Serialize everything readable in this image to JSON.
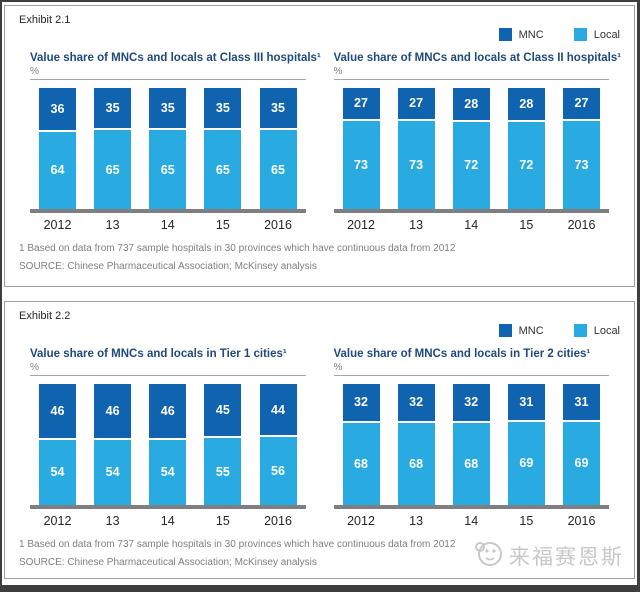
{
  "colors": {
    "mnc": "#1063ae",
    "local": "#29abe2",
    "title": "#1f4a7d",
    "rule": "#a6a6a6",
    "axis": "#7f7f7f",
    "panel-border": "#9d9d9d",
    "frame": "#3e3e3e",
    "watermark": "#c8c8c8"
  },
  "legend": {
    "mnc": "MNC",
    "local": "Local"
  },
  "exhibits": [
    {
      "label": "Exhibit 2.1",
      "footnote": "1 Based on data from 737 sample hospitals in 30 provinces which have continuous data from 2012",
      "source": "SOURCE: Chinese Pharmaceutical Association; McKinsey analysis"
    },
    {
      "label": "Exhibit 2.2",
      "footnote": "1 Based on data from 737 sample hospitals in 30 provinces which have continuous data from 2012",
      "source": "SOURCE: Chinese Pharmaceutical Association; McKinsey analysis"
    }
  ],
  "watermark": {
    "text": "来福赛恩斯"
  },
  "chart_data": [
    {
      "type": "bar",
      "stacked": true,
      "title": "Value share of MNCs and locals at Class III hospitals¹",
      "unit": "%",
      "ylim": [
        0,
        100
      ],
      "grid": false,
      "legend_position": "top-right",
      "categories": [
        "2012",
        "13",
        "14",
        "15",
        "2016"
      ],
      "series": [
        {
          "name": "MNC",
          "values": [
            36,
            35,
            35,
            35,
            35
          ]
        },
        {
          "name": "Local",
          "values": [
            64,
            65,
            65,
            65,
            65
          ]
        }
      ]
    },
    {
      "type": "bar",
      "stacked": true,
      "title": "Value share of MNCs and locals at Class II hospitals¹",
      "unit": "%",
      "ylim": [
        0,
        100
      ],
      "grid": false,
      "legend_position": "top-right",
      "categories": [
        "2012",
        "13",
        "14",
        "15",
        "2016"
      ],
      "series": [
        {
          "name": "MNC",
          "values": [
            27,
            27,
            28,
            28,
            27
          ]
        },
        {
          "name": "Local",
          "values": [
            73,
            73,
            72,
            72,
            73
          ]
        }
      ]
    },
    {
      "type": "bar",
      "stacked": true,
      "title": "Value share of MNCs and locals in Tier 1 cities¹",
      "unit": "%",
      "ylim": [
        0,
        100
      ],
      "grid": false,
      "legend_position": "top-right",
      "categories": [
        "2012",
        "13",
        "14",
        "15",
        "2016"
      ],
      "series": [
        {
          "name": "MNC",
          "values": [
            46,
            46,
            46,
            45,
            44
          ]
        },
        {
          "name": "Local",
          "values": [
            54,
            54,
            54,
            55,
            56
          ]
        }
      ]
    },
    {
      "type": "bar",
      "stacked": true,
      "title": "Value share of MNCs and locals in Tier 2 cities¹",
      "unit": "%",
      "ylim": [
        0,
        100
      ],
      "grid": false,
      "legend_position": "top-right",
      "categories": [
        "2012",
        "13",
        "14",
        "15",
        "2016"
      ],
      "series": [
        {
          "name": "MNC",
          "values": [
            32,
            32,
            32,
            31,
            31
          ]
        },
        {
          "name": "Local",
          "values": [
            68,
            68,
            68,
            69,
            69
          ]
        }
      ]
    }
  ]
}
